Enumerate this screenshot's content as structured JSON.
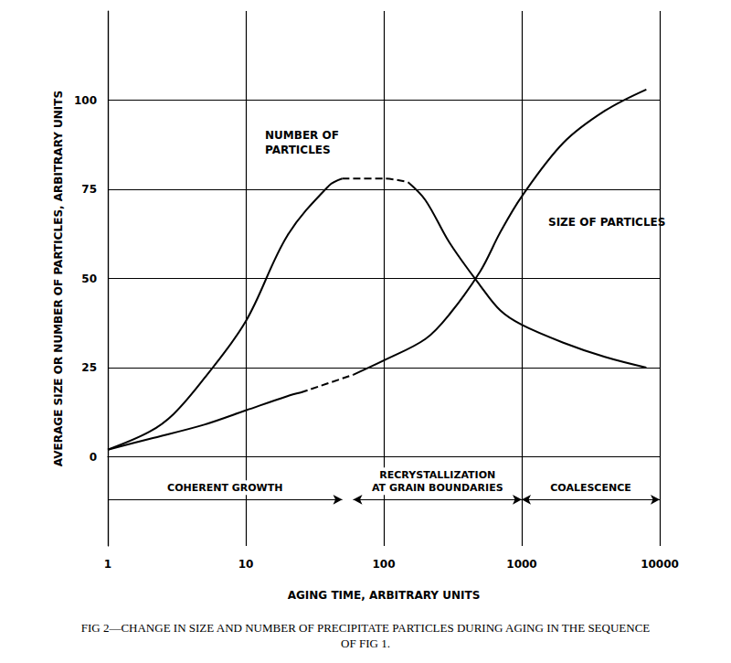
{
  "chart_data": {
    "type": "line",
    "title": "FIG 2—CHANGE IN SIZE AND NUMBER OF PRECIPITATE PARTICLES DURING AGING IN THE SEQUENCE\nOF FIG 1.",
    "x_label": "AGING TIME, ARBITRARY UNITS",
    "y_label": "AVERAGE SIZE OR NUMBER OF PARTICLES, ARBITRARY UNITS",
    "log": "x",
    "grid": true,
    "xlim": [
      1,
      10000
    ],
    "xticks": [
      1,
      10,
      100,
      1000,
      10000
    ],
    "ylim": [
      -25,
      125
    ],
    "yticks": [
      0,
      25,
      50,
      75,
      100
    ],
    "series": [
      {
        "name": "NUMBER OF\nPARTICLES",
        "color": "#000000",
        "segments": [
          {
            "line_style": "solid",
            "x": [
              1,
              2,
              3,
              5,
              10,
              20,
              40,
              50
            ],
            "values": [
              2,
              7,
              12,
              22,
              38,
              62,
              76,
              78
            ]
          },
          {
            "line_style": "dashed",
            "x": [
              50,
              100,
              150
            ],
            "values": [
              78,
              78,
              77
            ]
          },
          {
            "line_style": "solid",
            "x": [
              150,
              200,
              300,
              500,
              700,
              1000,
              2000,
              4000,
              8000
            ],
            "values": [
              77,
              72,
              60,
              48,
              41,
              37,
              32,
              28,
              25
            ]
          }
        ]
      },
      {
        "name": "SIZE OF PARTICLES",
        "color": "#000000",
        "segments": [
          {
            "line_style": "solid",
            "x": [
              1,
              2,
              5,
              10,
              20,
              25
            ],
            "values": [
              2,
              5,
              9,
              13,
              17,
              18
            ]
          },
          {
            "line_style": "dashed",
            "x": [
              25,
              60
            ],
            "values": [
              18,
              23
            ]
          },
          {
            "line_style": "solid",
            "x": [
              60,
              100,
              200,
              300,
              500,
              700,
              1000,
              2000,
              4000,
              8000
            ],
            "values": [
              23,
              27,
              33,
              40,
              52,
              63,
              73,
              88,
              97,
              103
            ]
          }
        ]
      }
    ],
    "phases": [
      {
        "label": "COHERENT GROWTH",
        "from": 1,
        "to": 50
      },
      {
        "label": "RECRYSTALLIZATION\nAT GRAIN BOUNDARIES",
        "from": 60,
        "to": 1000
      },
      {
        "label": "COALESCENCE",
        "from": 1000,
        "to": 10000
      }
    ]
  }
}
